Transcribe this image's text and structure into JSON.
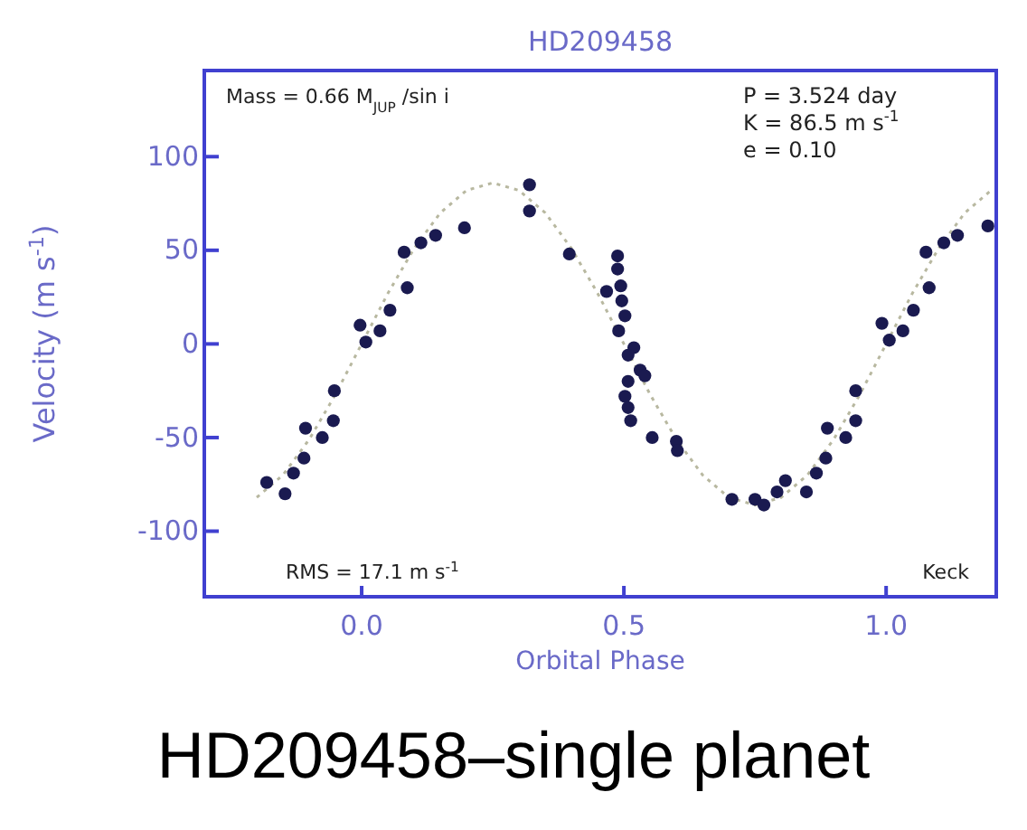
{
  "chart_data": {
    "type": "scatter",
    "title": "HD209458",
    "xlabel": "Orbital Phase",
    "ylabel": "Velocity (m s$^{-1}$)",
    "xlim": [
      -0.3,
      1.21
    ],
    "ylim": [
      -135,
      146
    ],
    "xticks": [
      {
        "value": 0,
        "label": "0.0"
      },
      {
        "value": 0.5,
        "label": "0.5"
      },
      {
        "value": 1,
        "label": "1.0"
      }
    ],
    "yticks": [
      -100,
      -50,
      0,
      50,
      100
    ],
    "grid": false,
    "marker": "circle",
    "annotations": [
      "Mass = 0.66 M$_{JUP}$ /sin i",
      "P = 3.524 day",
      "K = 86.5 m s$^{-1}$",
      "e = 0.10",
      "RMS = 17.1 m s$^{-1}$",
      "Keck",
      "HD209458–single planet"
    ],
    "series": [
      {
        "type": "line",
        "marker": "none",
        "line_style": "dotted",
        "color": "#b8b8a0",
        "x": [
          -0.2,
          -0.15,
          -0.1,
          -0.05,
          0,
          0.05,
          0.1,
          0.15,
          0.2,
          0.25,
          0.3,
          0.35,
          0.4,
          0.45,
          0.5,
          0.55,
          0.6,
          0.65,
          0.7,
          0.75,
          0.8,
          0.85,
          0.9,
          0.95,
          1.0,
          1.05,
          1.1,
          1.15,
          1.2
        ],
        "values": [
          -82,
          -70,
          -51,
          -27,
          0,
          27,
          51,
          70,
          82,
          86,
          82,
          70,
          51,
          27,
          0,
          -27,
          -51,
          -70,
          -82,
          -86,
          -82,
          -70,
          -51,
          -27,
          0,
          27,
          51,
          70,
          82
        ]
      },
      {
        "color": "#1a1a50",
        "x": [
          -0.181,
          -0.146,
          -0.13,
          -0.11,
          -0.107,
          -0.075,
          -0.054,
          -0.052,
          -0.003,
          0.008,
          0.035,
          0.054,
          0.087,
          0.081,
          0.113,
          0.141,
          0.196,
          0.32,
          0.32,
          0.396,
          0.488,
          0.488,
          0.467,
          0.494,
          0.496,
          0.502,
          0.519,
          0.508,
          0.531,
          0.508,
          0.502,
          0.508,
          0.513,
          0.49,
          0.54,
          0.554,
          0.6,
          0.602,
          0.706,
          0.75,
          0.767,
          0.792,
          0.808,
          0.848,
          0.867,
          0.885,
          0.888,
          0.923,
          0.942,
          0.942,
          0.992,
          1.006,
          1.032,
          1.052,
          1.082,
          1.076,
          1.11,
          1.136,
          1.194
        ],
        "values": [
          -74,
          -80,
          -69,
          -61,
          -45,
          -50,
          -41,
          -25,
          10,
          1,
          7,
          18,
          30,
          49,
          54,
          58,
          62,
          85,
          71,
          48,
          47,
          40,
          28,
          31,
          23,
          15,
          -2,
          -6,
          -14,
          -20,
          -28,
          -34,
          -41,
          7,
          -17,
          -50,
          -52,
          -57,
          -83,
          -83,
          -86,
          -79,
          -73,
          -79,
          -69,
          -61,
          -45,
          -50,
          -41,
          -25,
          11,
          2,
          7,
          18,
          30,
          49,
          54,
          58,
          63
        ]
      }
    ]
  }
}
